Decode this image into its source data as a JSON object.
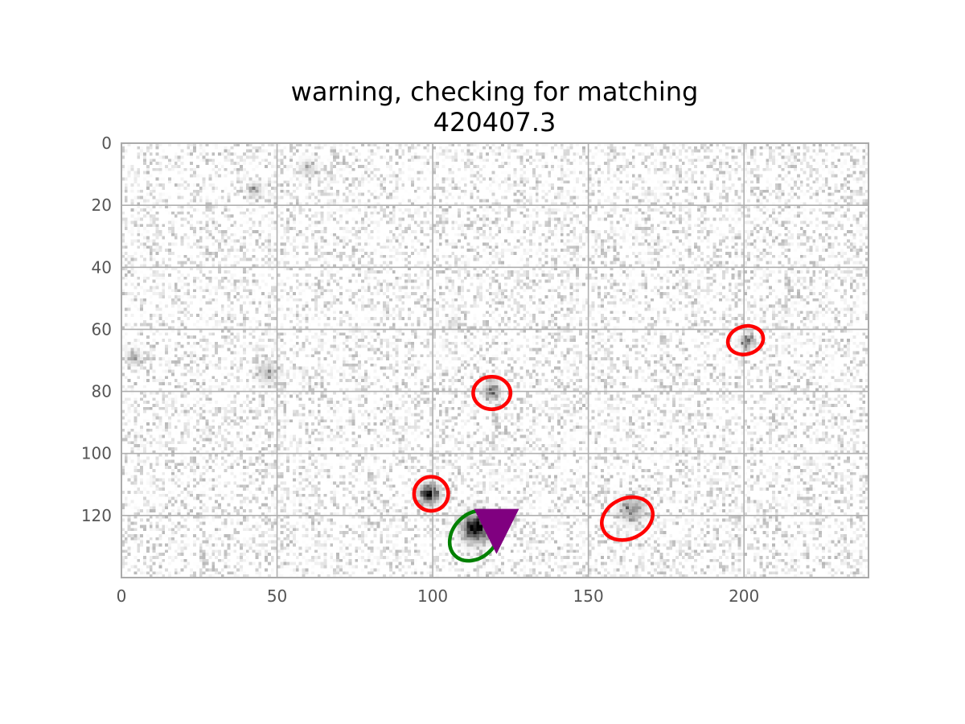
{
  "chart_data": {
    "type": "heatmap",
    "title_lines": [
      "warning, checking for matching",
      "420407.3"
    ],
    "xlabel": "",
    "ylabel": "",
    "xlim": [
      0,
      240
    ],
    "ylim": [
      140,
      0
    ],
    "x_ticks": [
      0,
      50,
      100,
      150,
      200
    ],
    "y_ticks": [
      0,
      20,
      40,
      60,
      80,
      100,
      120
    ],
    "grid": true,
    "colormap": "gray_r",
    "sources": [
      {
        "x": 114,
        "y": 124,
        "brightness": 1.0,
        "size": 4.0
      },
      {
        "x": 99,
        "y": 113,
        "brightness": 0.95,
        "size": 2.8
      },
      {
        "x": 119,
        "y": 80,
        "brightness": 0.55,
        "size": 2.4
      },
      {
        "x": 164,
        "y": 118,
        "brightness": 0.4,
        "size": 3.5
      },
      {
        "x": 201,
        "y": 64,
        "brightness": 0.5,
        "size": 2.0
      },
      {
        "x": 43,
        "y": 15,
        "brightness": 0.3,
        "size": 2.0
      },
      {
        "x": 4,
        "y": 69,
        "brightness": 0.3,
        "size": 2.0
      },
      {
        "x": 47,
        "y": 74,
        "brightness": 0.22,
        "size": 3.0
      },
      {
        "x": 60,
        "y": 8,
        "brightness": 0.18,
        "size": 2.5
      },
      {
        "x": 107,
        "y": 58,
        "brightness": 0.12,
        "size": 2.0
      }
    ],
    "red_ellipses": [
      {
        "x": 99.5,
        "y": 113,
        "width": 11,
        "height": 11,
        "angle": 0
      },
      {
        "x": 119,
        "y": 80.5,
        "width": 12,
        "height": 10.5,
        "angle": 0
      },
      {
        "x": 162.5,
        "y": 121,
        "width": 17,
        "height": 13,
        "angle": -25
      },
      {
        "x": 200.5,
        "y": 63.5,
        "width": 11.5,
        "height": 9,
        "angle": -15
      }
    ],
    "green_ellipses": [
      {
        "x": 113.5,
        "y": 126.5,
        "width": 18,
        "height": 14,
        "angle": -45
      }
    ],
    "markers": [
      {
        "shape": "triangle-down",
        "x": 120.5,
        "y": 122,
        "color": "#800080"
      }
    ],
    "colors": {
      "red_ellipse": "#ff0000",
      "green_ellipse": "#008000",
      "marker": "#800080",
      "grid": "#b0b0b0",
      "frame": "#aaaaaa"
    }
  }
}
